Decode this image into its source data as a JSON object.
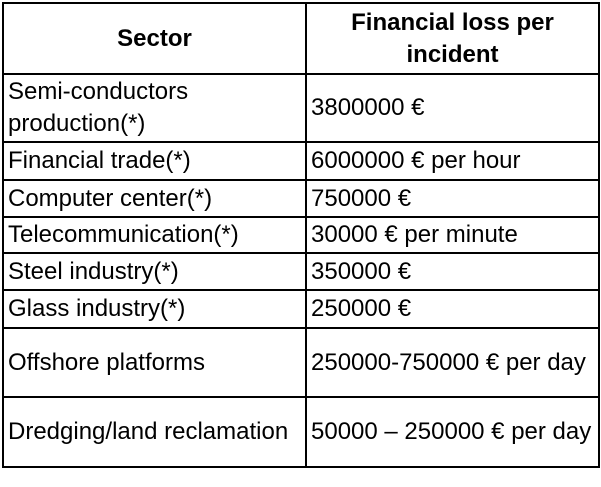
{
  "header": {
    "columns": [
      "Sector",
      "Financial loss per incident"
    ]
  },
  "table": {
    "rows": [
      [
        "Semi-conductors production(*)",
        "3800000 €"
      ],
      [
        "Financial trade(*)",
        "6000000 € per hour"
      ],
      [
        "Computer center(*)",
        "750000 €"
      ],
      [
        "Telecommunication(*)",
        "30000 € per minute"
      ],
      [
        "Steel industry(*)",
        "350000 €"
      ],
      [
        "Glass industry(*)",
        "250000 €"
      ],
      [
        "Offshore platforms",
        "250000-750000 € per day"
      ],
      [
        "Dredging/land reclamation",
        "50000 – 250000 € per day"
      ]
    ]
  }
}
